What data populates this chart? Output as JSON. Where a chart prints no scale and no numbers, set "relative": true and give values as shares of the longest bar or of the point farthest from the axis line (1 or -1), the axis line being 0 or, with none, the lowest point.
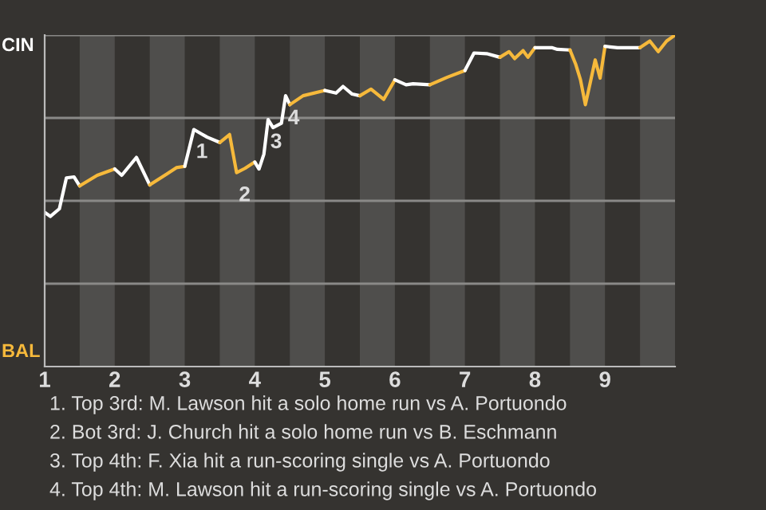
{
  "chart_data": {
    "type": "line",
    "relative": true,
    "series": [
      {
        "color": "#ffffff",
        "x": [
          1.0,
          1.08,
          1.21,
          1.31,
          1.42,
          1.5
        ],
        "values": [
          0.465,
          0.453,
          0.476,
          0.569,
          0.572,
          0.545
        ]
      },
      {
        "color": "#f6b93b",
        "x": [
          1.5,
          1.75,
          2.0
        ],
        "values": [
          0.545,
          0.577,
          0.596
        ]
      },
      {
        "color": "#ffffff",
        "x": [
          2.0,
          2.1,
          2.31,
          2.5
        ],
        "values": [
          0.596,
          0.577,
          0.631,
          0.548
        ]
      },
      {
        "color": "#f6b93b",
        "x": [
          2.5,
          2.75,
          2.88,
          3.0
        ],
        "values": [
          0.548,
          0.582,
          0.6,
          0.604
        ]
      },
      {
        "color": "#ffffff",
        "x": [
          3.0,
          3.13,
          3.32,
          3.5
        ],
        "values": [
          0.604,
          0.715,
          0.692,
          0.676
        ]
      },
      {
        "color": "#f6b93b",
        "x": [
          3.5,
          3.64,
          3.74,
          3.86,
          4.0
        ],
        "values": [
          0.676,
          0.7,
          0.585,
          0.598,
          0.617
        ]
      },
      {
        "color": "#ffffff",
        "x": [
          4.0,
          4.06,
          4.13,
          4.19,
          4.26,
          4.38,
          4.44,
          4.5
        ],
        "values": [
          0.617,
          0.596,
          0.641,
          0.745,
          0.721,
          0.734,
          0.817,
          0.79
        ]
      },
      {
        "color": "#f6b93b",
        "x": [
          4.5,
          4.69,
          5.0
        ],
        "values": [
          0.79,
          0.817,
          0.833
        ]
      },
      {
        "color": "#ffffff",
        "x": [
          5.0,
          5.16,
          5.26,
          5.39,
          5.5
        ],
        "values": [
          0.833,
          0.825,
          0.845,
          0.822,
          0.817
        ]
      },
      {
        "color": "#f6b93b",
        "x": [
          5.5,
          5.66,
          5.84,
          6.0
        ],
        "values": [
          0.817,
          0.837,
          0.806,
          0.865
        ]
      },
      {
        "color": "#ffffff",
        "x": [
          6.0,
          6.16,
          6.26,
          6.5
        ],
        "values": [
          0.865,
          0.85,
          0.853,
          0.85
        ]
      },
      {
        "color": "#f6b93b",
        "x": [
          6.5,
          6.75,
          7.0
        ],
        "values": [
          0.85,
          0.873,
          0.893
        ]
      },
      {
        "color": "#ffffff",
        "x": [
          7.0,
          7.13,
          7.31,
          7.5
        ],
        "values": [
          0.893,
          0.946,
          0.944,
          0.933
        ]
      },
      {
        "color": "#f6b93b",
        "x": [
          7.5,
          7.63,
          7.71,
          7.83,
          7.9,
          8.0
        ],
        "values": [
          0.933,
          0.95,
          0.929,
          0.953,
          0.933,
          0.962
        ]
      },
      {
        "color": "#ffffff",
        "x": [
          8.0,
          8.24,
          8.32,
          8.5
        ],
        "values": [
          0.962,
          0.962,
          0.957,
          0.955
        ]
      },
      {
        "color": "#f6b93b",
        "x": [
          8.5,
          8.58,
          8.65,
          8.72,
          8.79,
          8.86,
          8.93,
          9.0
        ],
        "values": [
          0.955,
          0.913,
          0.865,
          0.79,
          0.857,
          0.925,
          0.87,
          0.966
        ]
      },
      {
        "color": "#ffffff",
        "x": [
          9.0,
          9.18,
          9.5
        ],
        "values": [
          0.966,
          0.962,
          0.962
        ]
      },
      {
        "color": "#f6b93b",
        "x": [
          9.5,
          9.64,
          9.76,
          9.88,
          10.0
        ],
        "values": [
          0.962,
          0.982,
          0.95,
          0.982,
          1.0
        ]
      }
    ],
    "xlim": [
      1,
      10
    ],
    "xticks": [
      1,
      2,
      3,
      4,
      5,
      6,
      7,
      8,
      9
    ],
    "ref_lines": [
      {
        "axis": "y",
        "value": 0.25,
        "color": "#8a8987"
      },
      {
        "axis": "y",
        "value": 0.5,
        "color": "#8a8987"
      },
      {
        "axis": "y",
        "value": 0.75,
        "color": "#8a8987"
      },
      {
        "axis": "y",
        "value": 1.0,
        "color": "#8a8987"
      }
    ],
    "bands": [
      {
        "axis": "x",
        "from": 1.5,
        "to": 2,
        "color": "#4f4e4c"
      },
      {
        "axis": "x",
        "from": 2.5,
        "to": 3,
        "color": "#4f4e4c"
      },
      {
        "axis": "x",
        "from": 3.5,
        "to": 4,
        "color": "#4f4e4c"
      },
      {
        "axis": "x",
        "from": 4.5,
        "to": 5,
        "color": "#4f4e4c"
      },
      {
        "axis": "x",
        "from": 5.5,
        "to": 6,
        "color": "#4f4e4c"
      },
      {
        "axis": "x",
        "from": 6.5,
        "to": 7,
        "color": "#4f4e4c"
      },
      {
        "axis": "x",
        "from": 7.5,
        "to": 8,
        "color": "#4f4e4c"
      },
      {
        "axis": "x",
        "from": 8.5,
        "to": 9,
        "color": "#4f4e4c"
      },
      {
        "axis": "x",
        "from": 9.5,
        "to": 10,
        "color": "#4f4e4c"
      }
    ],
    "annotations": [
      "CIN",
      "BAL",
      {
        "text": "1",
        "x": 3.13,
        "y": 0.715
      },
      {
        "text": "2",
        "x": 3.74,
        "y": 0.585
      },
      {
        "text": "3",
        "x": 4.19,
        "y": 0.745
      },
      {
        "text": "4",
        "x": 4.44,
        "y": 0.817
      },
      "1. Top 3rd: M. Lawson hit a solo home run vs A. Portuondo",
      "2. Bot 3rd: J. Church hit a solo home run vs B. Eschmann",
      "3. Top 4th: F. Xia hit a run-scoring single vs A. Portuondo",
      "4. Top 4th: M. Lawson hit a run-scoring single vs A. Portuondo"
    ],
    "line_style": "solid",
    "marker": "none"
  }
}
